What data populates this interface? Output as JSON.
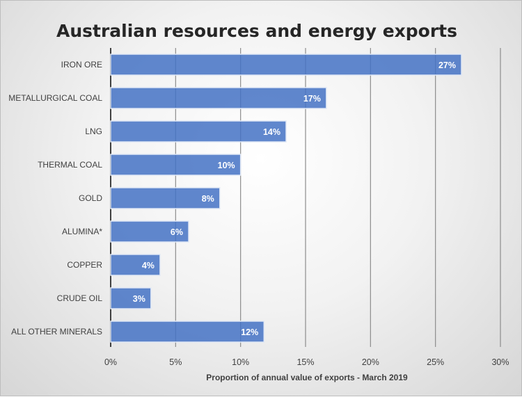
{
  "chart_data": {
    "type": "bar",
    "orientation": "horizontal",
    "title": "Australian resources and energy exports",
    "xlabel": "Proportion of annual value of exports - March 2019",
    "ylabel": "",
    "categories": [
      "IRON ORE",
      "METALLURGICAL COAL",
      "LNG",
      "THERMAL COAL",
      "GOLD",
      "ALUMINA*",
      "COPPER",
      "CRUDE OIL",
      "ALL OTHER MINERALS"
    ],
    "values": [
      27,
      16.6,
      13.5,
      10,
      8.4,
      6,
      3.8,
      3.1,
      11.8
    ],
    "data_labels": [
      "27%",
      "17%",
      "14%",
      "10%",
      "8%",
      "6%",
      "4%",
      "3%",
      "12%"
    ],
    "xlim": [
      0,
      30
    ],
    "xticks": [
      0,
      5,
      10,
      15,
      20,
      25,
      30
    ],
    "xtick_labels": [
      "0%",
      "5%",
      "10%",
      "15%",
      "20%",
      "25%",
      "30%"
    ],
    "grid": true,
    "legend": "none",
    "colors": {
      "bar": "#4472c4",
      "grid": "#a6a6a6",
      "axis": "#404040"
    }
  }
}
